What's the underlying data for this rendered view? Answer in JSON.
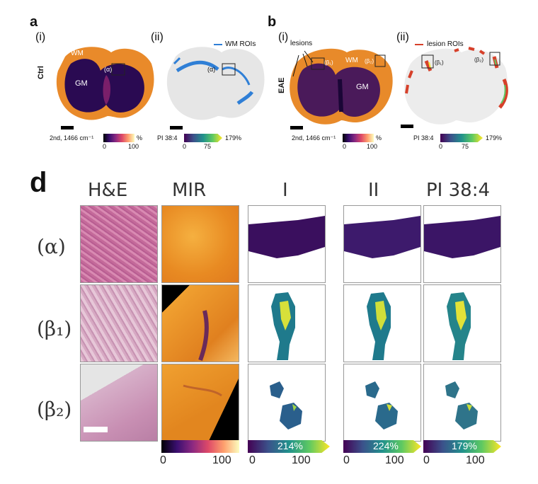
{
  "panel_a": {
    "letter": "a",
    "sub_i": "(i)",
    "sub_ii": "(ii)",
    "row_label": "Ctrl",
    "wm": "WM",
    "gm": "GM",
    "alpha": "(α)",
    "legend_rois": "WM ROIs",
    "cbar_i_label": "2nd, 1466 cm⁻¹",
    "cbar_i_unit": "%",
    "cbar_i_min": "0",
    "cbar_i_max": "100",
    "cbar_ii_label": "PI 38:4",
    "cbar_ii_mid": "75",
    "cbar_ii_max": "179%",
    "cbar_ii_min": "0"
  },
  "panel_b": {
    "letter": "b",
    "sub_i": "(i)",
    "sub_ii": "(ii)",
    "row_label": "EAE",
    "lesions": "lesions",
    "wm": "WM",
    "gm": "GM",
    "beta1": "(β₁)",
    "beta2": "(β₂)",
    "legend_rois": "lesion ROIs",
    "cbar_i_label": "2nd, 1466 cm⁻¹",
    "cbar_i_unit": "%",
    "cbar_i_min": "0",
    "cbar_i_max": "100",
    "cbar_ii_label": "PI 38:4",
    "cbar_ii_mid": "75",
    "cbar_ii_max": "179%",
    "cbar_ii_min": "0"
  },
  "panel_d": {
    "letter": "d",
    "columns": [
      "H&E",
      "MIR",
      "I",
      "II",
      "PI 38:4"
    ],
    "rows": [
      "(α)",
      "(β₁)",
      "(β₂)"
    ],
    "colorbars": [
      {
        "max_label": "",
        "min": "0",
        "max": "100"
      },
      {
        "max_label": "214%",
        "min": "0",
        "max": "100"
      },
      {
        "max_label": "224%",
        "min": "0",
        "max": "100"
      },
      {
        "max_label": "179%",
        "min": "0",
        "max": "100"
      }
    ]
  },
  "colors": {
    "inferno_bg": "#f0962a",
    "viridis_low": "#3b1c6e",
    "viridis_high": "#f2e63a",
    "roi_blue": "#2f7fd6",
    "roi_red": "#d6402a"
  }
}
